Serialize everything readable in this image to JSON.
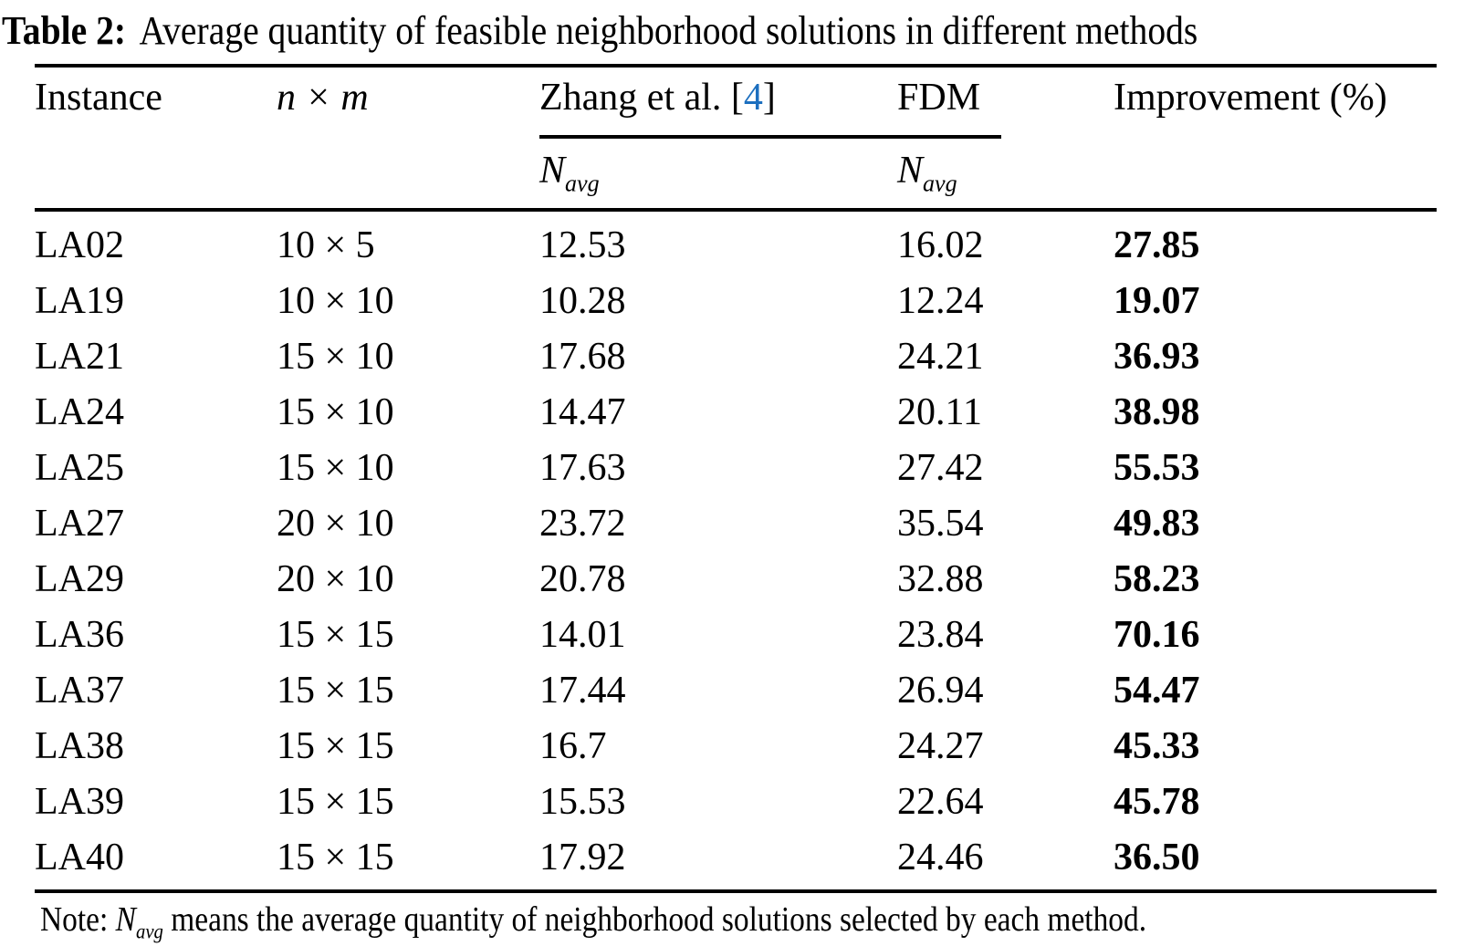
{
  "title": {
    "label": "Table 2:",
    "text": "Average quantity of feasible neighborhood solutions in different methods"
  },
  "table": {
    "header": {
      "instance": "Instance",
      "n_x_m": "n × m",
      "zhang_prefix": "Zhang et al. [",
      "zhang_cite": "4",
      "zhang_suffix": "]",
      "fdm": "FDM",
      "improvement": "Improvement (%)",
      "navg_base": "N",
      "navg_sub": "avg"
    },
    "rows": [
      {
        "instance": "LA02",
        "size": "10 × 5",
        "zhang": "12.53",
        "fdm": "16.02",
        "improvement": "27.85"
      },
      {
        "instance": "LA19",
        "size": "10 × 10",
        "zhang": "10.28",
        "fdm": "12.24",
        "improvement": "19.07"
      },
      {
        "instance": "LA21",
        "size": "15 × 10",
        "zhang": "17.68",
        "fdm": "24.21",
        "improvement": "36.93"
      },
      {
        "instance": "LA24",
        "size": "15 × 10",
        "zhang": "14.47",
        "fdm": "20.11",
        "improvement": "38.98"
      },
      {
        "instance": "LA25",
        "size": "15 × 10",
        "zhang": "17.63",
        "fdm": "27.42",
        "improvement": "55.53"
      },
      {
        "instance": "LA27",
        "size": "20 × 10",
        "zhang": "23.72",
        "fdm": "35.54",
        "improvement": "49.83"
      },
      {
        "instance": "LA29",
        "size": "20 × 10",
        "zhang": "20.78",
        "fdm": "32.88",
        "improvement": "58.23"
      },
      {
        "instance": "LA36",
        "size": "15 × 15",
        "zhang": "14.01",
        "fdm": "23.84",
        "improvement": "70.16"
      },
      {
        "instance": "LA37",
        "size": "15 × 15",
        "zhang": "17.44",
        "fdm": "26.94",
        "improvement": "54.47"
      },
      {
        "instance": "LA38",
        "size": "15 × 15",
        "zhang": "16.7",
        "fdm": "24.27",
        "improvement": "45.33"
      },
      {
        "instance": "LA39",
        "size": "15 × 15",
        "zhang": "15.53",
        "fdm": "22.64",
        "improvement": "45.78"
      },
      {
        "instance": "LA40",
        "size": "15 × 15",
        "zhang": "17.92",
        "fdm": "24.46",
        "improvement": "36.50"
      }
    ]
  },
  "note": {
    "prefix": "Note: ",
    "navg_base": "N",
    "navg_sub": "avg",
    "text": " means the average quantity of neighborhood solutions selected by each method."
  },
  "colors": {
    "text": "#000000",
    "rule": "#000000",
    "citation_link": "#1c6fbf",
    "background": "#ffffff"
  }
}
